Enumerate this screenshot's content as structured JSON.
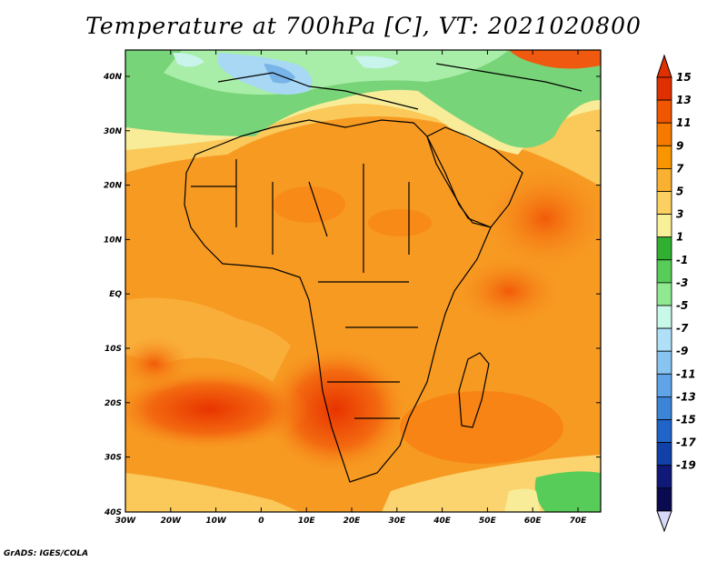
{
  "map": {
    "title": "Temperature at 700hPa [C], VT: 2021020800",
    "credit": "GrADS: IGES/COLA",
    "lat_labels": [
      "40N",
      "30N",
      "20N",
      "10N",
      "EQ",
      "10S",
      "20S",
      "30S",
      "40S"
    ],
    "lon_labels": [
      "30W",
      "20W",
      "10W",
      "0",
      "10E",
      "20E",
      "30E",
      "40E",
      "50E",
      "60E",
      "70E"
    ],
    "colorbar": {
      "labels": [
        "15",
        "13",
        "11",
        "9",
        "7",
        "5",
        "3",
        "1",
        "-1",
        "-3",
        "-5",
        "-7",
        "-9",
        "-11",
        "-13",
        "-15",
        "-17",
        "-19"
      ],
      "colors": [
        "#e03000",
        "#f05500",
        "#f77a00",
        "#f99500",
        "#fab030",
        "#fbd060",
        "#f8f098",
        "#30b030",
        "#58cc58",
        "#90e890",
        "#c8f8e8",
        "#b0e0f8",
        "#88c4f0",
        "#60a4e8",
        "#3c84d8",
        "#2064c8",
        "#1040a8",
        "#101878",
        "#0a0a50"
      ],
      "top_arrow_color": "#e03000",
      "bottom_arrow_color": "#d8d8f8"
    }
  }
}
